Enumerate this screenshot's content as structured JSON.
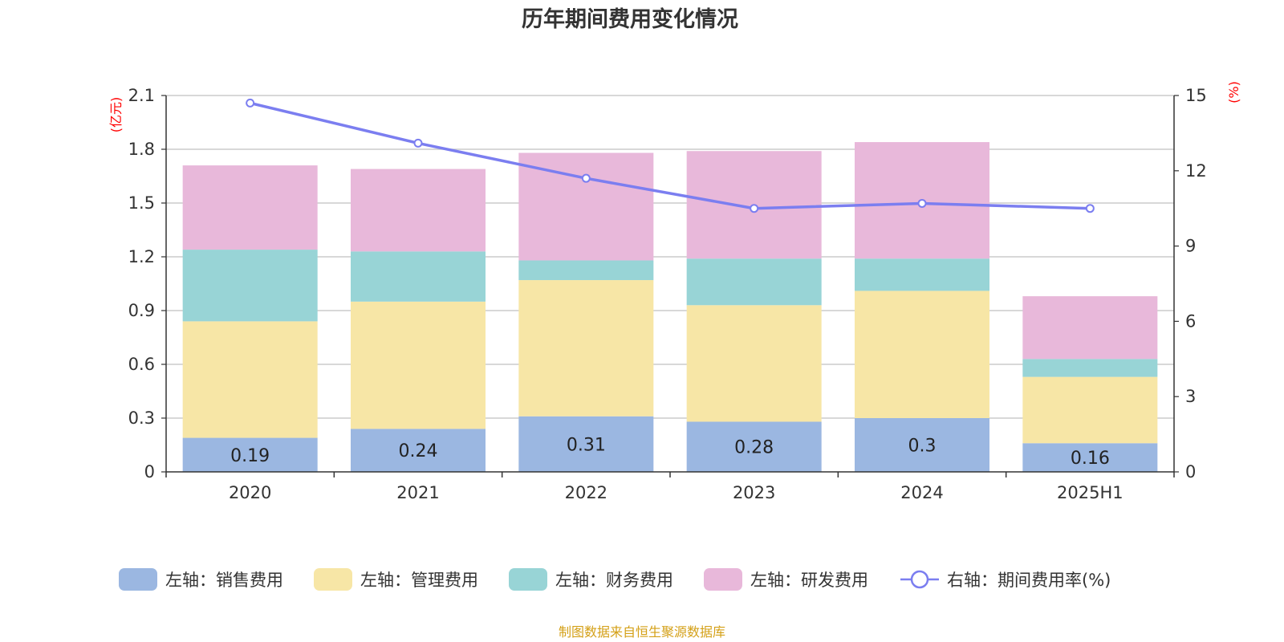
{
  "title": "历年期间费用变化情况",
  "source_note": "制图数据来自恒生聚源数据库",
  "left_unit": "(亿元)",
  "right_unit": "(%)",
  "chart_data": {
    "type": "bar",
    "stacked": true,
    "categories": [
      "2020",
      "2021",
      "2022",
      "2023",
      "2024",
      "2025H1"
    ],
    "left_axis": {
      "min": 0,
      "max": 2.1,
      "ticks": [
        "0",
        "0.3",
        "0.6",
        "0.9",
        "1.2",
        "1.5",
        "1.8",
        "2.1"
      ]
    },
    "right_axis": {
      "min": 0,
      "max": 15,
      "ticks": [
        "0",
        "3",
        "6",
        "9",
        "12",
        "15"
      ]
    },
    "grid": true,
    "legend_position": "bottom",
    "series": [
      {
        "name": "左轴：销售费用",
        "axis": "left",
        "type": "bar",
        "color": "#9bb7e1",
        "values": [
          0.19,
          0.24,
          0.31,
          0.28,
          0.3,
          0.16
        ],
        "labels": [
          "0.19",
          "0.24",
          "0.31",
          "0.28",
          "0.3",
          "0.16"
        ]
      },
      {
        "name": "左轴：管理费用",
        "axis": "left",
        "type": "bar",
        "color": "#f7e6a6",
        "values": [
          0.65,
          0.71,
          0.76,
          0.65,
          0.71,
          0.37
        ]
      },
      {
        "name": "左轴：财务费用",
        "axis": "left",
        "type": "bar",
        "color": "#98d4d6",
        "values": [
          0.4,
          0.28,
          0.11,
          0.26,
          0.18,
          0.1
        ]
      },
      {
        "name": "左轴：研发费用",
        "axis": "left",
        "type": "bar",
        "color": "#e8b8da",
        "values": [
          0.47,
          0.46,
          0.6,
          0.6,
          0.65,
          0.35
        ]
      },
      {
        "name": "右轴：期间费用率(%)",
        "axis": "right",
        "type": "line",
        "color": "#7b7ef0",
        "values": [
          14.7,
          13.1,
          11.7,
          10.5,
          10.7,
          10.5
        ]
      }
    ]
  }
}
